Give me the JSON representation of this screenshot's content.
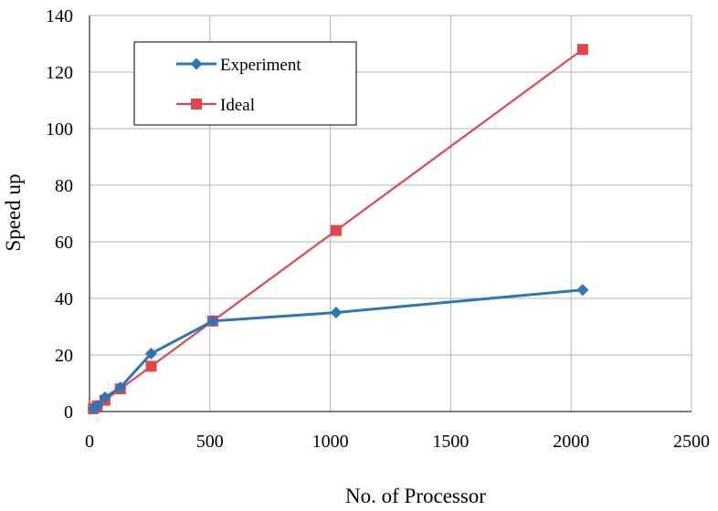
{
  "chart_data": {
    "type": "line",
    "xlabel": "No. of Processor",
    "ylabel": "Speed up",
    "xlim": [
      0,
      2500
    ],
    "ylim": [
      0,
      140
    ],
    "xticks": [
      0,
      500,
      1000,
      1500,
      2000,
      2500
    ],
    "yticks": [
      0,
      20,
      40,
      60,
      80,
      100,
      120,
      140
    ],
    "grid": true,
    "legend": "top-left",
    "series": [
      {
        "name": "Experiment",
        "color": "#2E75B6",
        "marker": "diamond",
        "x": [
          16,
          32,
          64,
          128,
          256,
          512,
          1024,
          2048
        ],
        "y": [
          1,
          2,
          5,
          8.5,
          20.5,
          32,
          35,
          43
        ]
      },
      {
        "name": "Ideal",
        "color": "#E0474C",
        "marker": "square",
        "x": [
          16,
          32,
          64,
          128,
          256,
          512,
          1024,
          2048
        ],
        "y": [
          1,
          2,
          4,
          8,
          16,
          32,
          64,
          128
        ]
      }
    ]
  }
}
